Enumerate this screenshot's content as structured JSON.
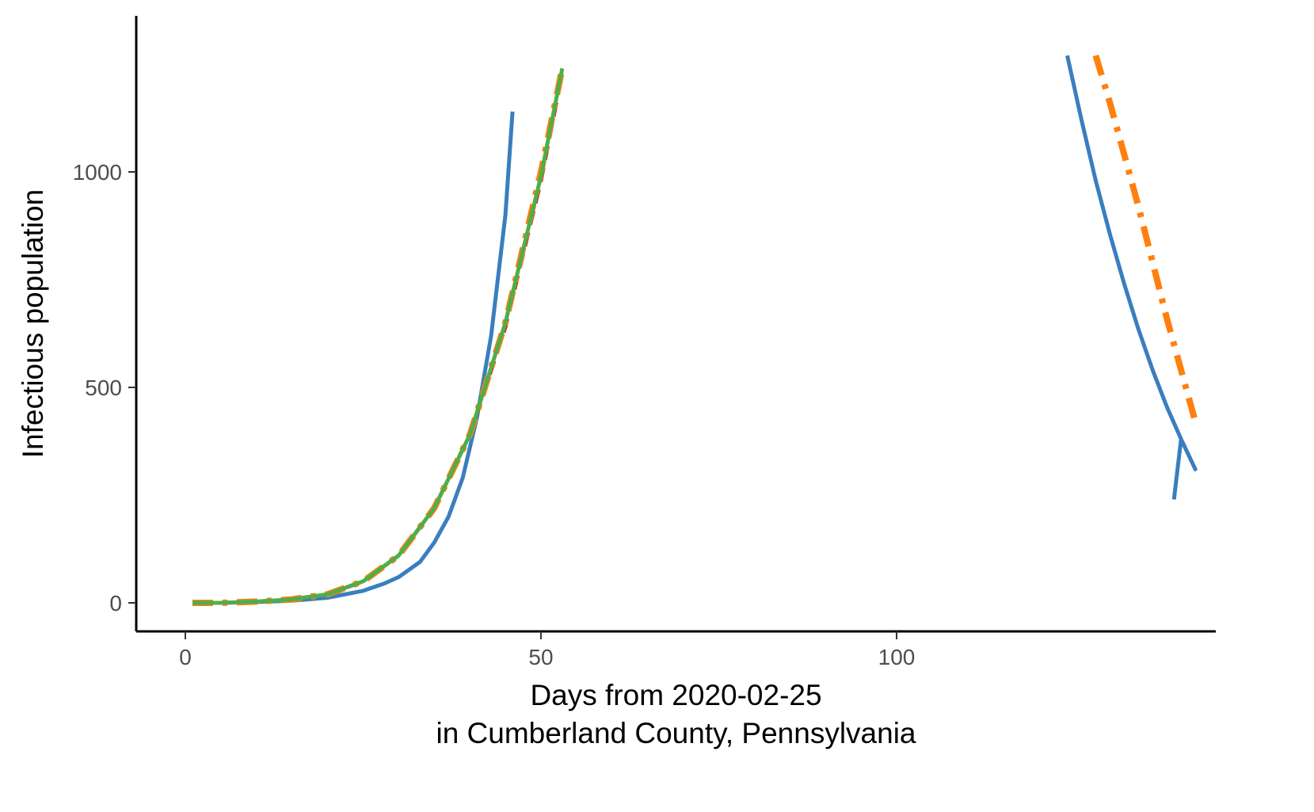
{
  "chart_data": {
    "type": "line",
    "title": "",
    "xlabel_lines": [
      "Days from 2020-02-25",
      "in Cumberland County, Pennsylvania"
    ],
    "ylabel": "Infectious population",
    "xlim": [
      -7,
      145
    ],
    "ylim": [
      -62,
      1360
    ],
    "x_ticks": [
      0,
      50,
      100
    ],
    "x_tick_labels": [
      "0",
      "50",
      "100"
    ],
    "y_ticks": [
      0,
      500,
      1000
    ],
    "y_tick_labels": [
      "0",
      "500",
      "1000"
    ],
    "grid": false,
    "legend": "none",
    "series": [
      {
        "color": "#3a7ebf",
        "dash": "solid",
        "segments": [
          [
            [
              1,
              0
            ],
            [
              5,
              0
            ],
            [
              10,
              2
            ],
            [
              15,
              5
            ],
            [
              20,
              12
            ],
            [
              25,
              28
            ],
            [
              28,
              45
            ],
            [
              30,
              60
            ],
            [
              33,
              95
            ],
            [
              35,
              140
            ],
            [
              37,
              200
            ],
            [
              39,
              290
            ],
            [
              41,
              430
            ],
            [
              43,
              620
            ],
            [
              45,
              900
            ],
            [
              46,
              1140
            ]
          ],
          [
            [
              124,
              1270
            ],
            [
              126,
              1120
            ],
            [
              128,
              980
            ],
            [
              130,
              855
            ],
            [
              132,
              740
            ],
            [
              134,
              635
            ],
            [
              136,
              540
            ],
            [
              138,
              455
            ],
            [
              140,
              380
            ],
            [
              142,
              310
            ],
            [
              140,
              380
            ],
            [
              139,
              240
            ]
          ]
        ]
      },
      {
        "color": "#d62728",
        "dash": "dashed",
        "segments": [
          [
            [
              1,
              0
            ],
            [
              5,
              0
            ],
            [
              10,
              3
            ],
            [
              15,
              8
            ],
            [
              20,
              20
            ],
            [
              25,
              50
            ],
            [
              30,
              110
            ],
            [
              35,
              220
            ],
            [
              40,
              390
            ],
            [
              45,
              640
            ],
            [
              50,
              980
            ],
            [
              53,
              1230
            ]
          ]
        ]
      },
      {
        "color": "#ff7f0e",
        "dash": "dashdot",
        "segments": [
          [
            [
              1,
              0
            ],
            [
              5,
              0
            ],
            [
              10,
              3
            ],
            [
              15,
              8
            ],
            [
              20,
              20
            ],
            [
              25,
              50
            ],
            [
              30,
              110
            ],
            [
              35,
              220
            ],
            [
              40,
              390
            ],
            [
              45,
              650
            ],
            [
              50,
              1000
            ],
            [
              53,
              1240
            ]
          ],
          [
            [
              128,
              1270
            ],
            [
              130,
              1160
            ],
            [
              132,
              1040
            ],
            [
              134,
              920
            ],
            [
              136,
              790
            ],
            [
              138,
              660
            ],
            [
              140,
              540
            ],
            [
              142,
              420
            ]
          ]
        ]
      },
      {
        "color": "#4daf4a",
        "dash": "solid",
        "segments": [
          [
            [
              1,
              0
            ],
            [
              5,
              0
            ],
            [
              10,
              3
            ],
            [
              15,
              8
            ],
            [
              20,
              20
            ],
            [
              25,
              50
            ],
            [
              30,
              110
            ],
            [
              35,
              220
            ],
            [
              40,
              390
            ],
            [
              45,
              650
            ],
            [
              50,
              990
            ],
            [
              53,
              1240
            ]
          ]
        ]
      }
    ]
  }
}
